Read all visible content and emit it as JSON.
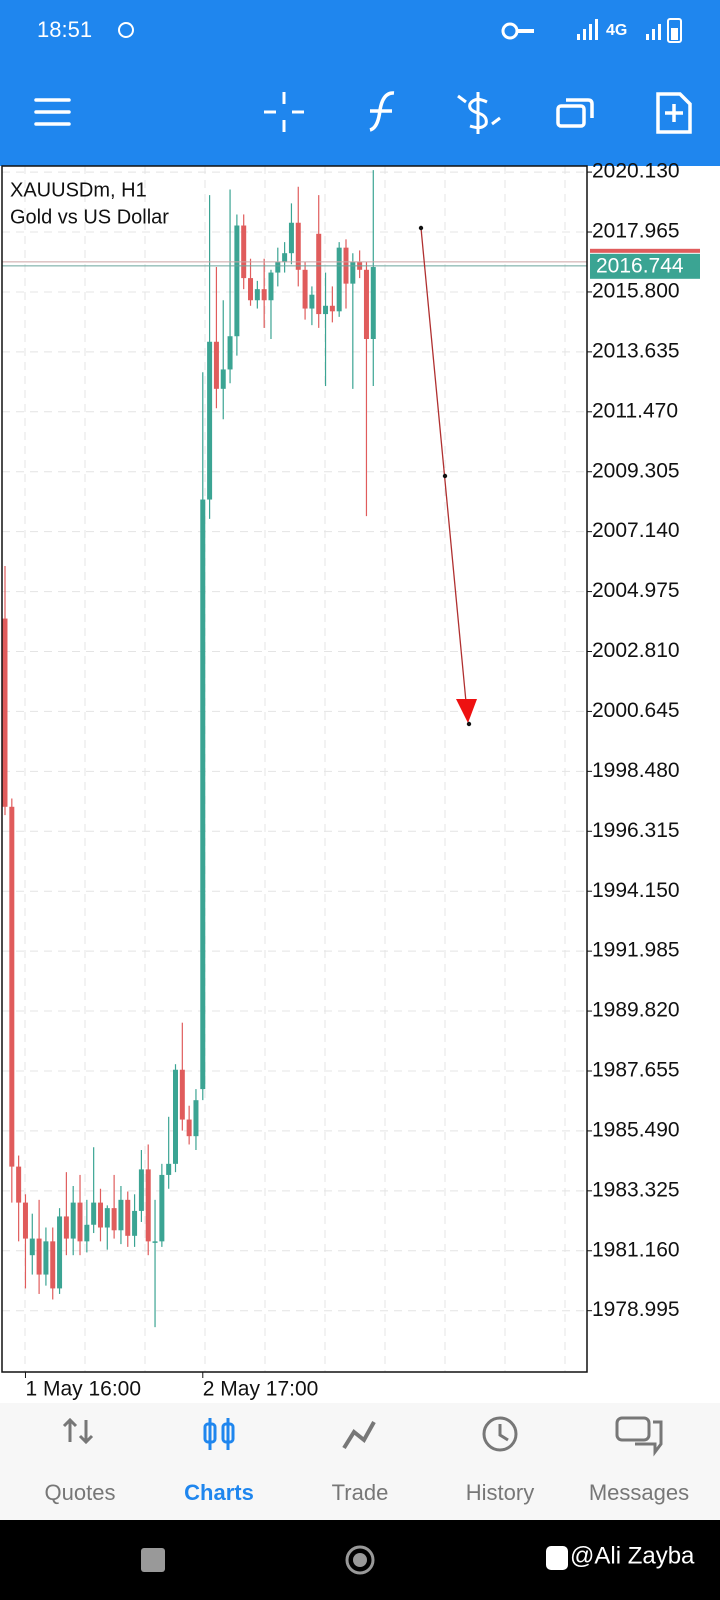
{
  "status_bar": {
    "time": "18:51",
    "network": "4G"
  },
  "chart_data": {
    "type": "candlestick",
    "title": "XAUUSDm, H1",
    "subtitle": "Gold vs US Dollar",
    "categories": [
      null,
      null,
      null,
      "1 May 16:00",
      null,
      null,
      null,
      null,
      null,
      null,
      null,
      null,
      null,
      null,
      null,
      null,
      null,
      null,
      null,
      null,
      null,
      null,
      null,
      null,
      null,
      null,
      null,
      null,
      null,
      "2 May 17:00",
      null,
      null,
      null,
      null,
      null,
      null,
      null,
      null,
      null,
      null,
      null,
      null,
      null,
      null,
      null,
      null,
      null,
      null,
      null,
      null,
      null,
      null,
      null,
      null,
      null
    ],
    "open": [
      2004.0,
      1997.2,
      1984.2,
      1982.9,
      1981.0,
      1981.6,
      1980.3,
      1981.5,
      1979.8,
      1982.4,
      1981.6,
      1982.9,
      1981.5,
      1982.1,
      1982.9,
      1982.0,
      1982.7,
      1981.9,
      1983.0,
      1981.7,
      1982.6,
      1984.1,
      1981.5,
      1981.5,
      1983.9,
      1984.3,
      1987.7,
      1985.9,
      1985.3,
      1987.0,
      2008.3,
      2014.0,
      2012.3,
      2013.0,
      2014.2,
      2018.2,
      2016.3,
      2015.5,
      2015.9,
      2015.5,
      2016.5,
      2016.9,
      2017.2,
      2018.3,
      2016.6,
      2015.2,
      2017.9,
      2015.0,
      2015.3,
      2015.1,
      2017.4,
      2016.1,
      2016.9,
      2016.6,
      2014.1
    ],
    "high": [
      2005.9,
      1997.5,
      1984.6,
      1983.2,
      1982.5,
      1983.0,
      1982.0,
      1982.0,
      1982.7,
      1984.0,
      1983.5,
      1983.9,
      1983.0,
      1984.9,
      1983.4,
      1982.8,
      1983.9,
      1983.5,
      1983.3,
      1983.2,
      1984.8,
      1985.0,
      1983.0,
      1984.3,
      1986.0,
      1987.9,
      1989.4,
      1986.4,
      1987.0,
      2012.9,
      2019.3,
      2016.7,
      2015.5,
      2019.5,
      2018.6,
      2018.6,
      2017.0,
      2016.2,
      2017.0,
      2016.6,
      2017.4,
      2017.6,
      2019.0,
      2019.6,
      2016.9,
      2016.0,
      2019.3,
      2016.5,
      2016.0,
      2017.6,
      2017.7,
      2017.2,
      2017.3,
      2016.9,
      2020.2
    ],
    "low": [
      1996.9,
      1982.9,
      1981.5,
      1979.8,
      1980.3,
      1979.6,
      1979.9,
      1979.4,
      1979.6,
      1981.0,
      1981.0,
      1981.0,
      1981.1,
      1981.8,
      1981.5,
      1981.2,
      1981.6,
      1981.4,
      1981.3,
      1981.3,
      1982.2,
      1981.0,
      1978.4,
      1981.3,
      1983.4,
      1984.0,
      1985.5,
      1985.0,
      1984.8,
      1986.6,
      2007.6,
      2011.6,
      2011.2,
      2012.5,
      2013.5,
      2015.9,
      2015.3,
      2015.2,
      2014.5,
      2014.1,
      2016.0,
      2016.5,
      2016.8,
      2016.0,
      2014.8,
      2014.6,
      2014.5,
      2012.4,
      2014.7,
      2014.9,
      2015.2,
      2012.3,
      2016.3,
      2007.7,
      2012.4
    ],
    "close": [
      1997.2,
      1984.2,
      1982.9,
      1981.6,
      1981.6,
      1980.3,
      1981.5,
      1979.8,
      1982.4,
      1981.6,
      1982.9,
      1981.5,
      1982.1,
      1982.9,
      1982.0,
      1982.7,
      1981.9,
      1983.0,
      1981.7,
      1982.6,
      1984.1,
      1981.5,
      1981.5,
      1983.9,
      1984.3,
      1987.7,
      1985.9,
      1985.3,
      1986.6,
      2008.3,
      2014.0,
      2012.3,
      2013.0,
      2014.2,
      2018.2,
      2016.3,
      2015.5,
      2015.9,
      2015.5,
      2016.5,
      2016.9,
      2017.2,
      2018.3,
      2016.6,
      2015.2,
      2015.7,
      2015.0,
      2015.3,
      2015.1,
      2017.4,
      2016.1,
      2016.9,
      2016.6,
      2014.1,
      2016.7
    ],
    "up_color": "#3ba493",
    "down_color": "#e05c5c",
    "ylim": [
      1976.78,
      2020.35
    ],
    "yticks": [
      {
        "value": 2020.13,
        "label": "2020.130"
      },
      {
        "value": 2017.965,
        "label": "2017.965"
      },
      {
        "value": 2015.8,
        "label": "2015.800"
      },
      {
        "value": 2013.635,
        "label": "2013.635"
      },
      {
        "value": 2011.47,
        "label": "2011.470"
      },
      {
        "value": 2009.305,
        "label": "2009.305"
      },
      {
        "value": 2007.14,
        "label": "2007.140"
      },
      {
        "value": 2004.975,
        "label": "2004.975"
      },
      {
        "value": 2002.81,
        "label": "2002.810"
      },
      {
        "value": 2000.645,
        "label": "2000.645"
      },
      {
        "value": 1998.48,
        "label": "1998.480"
      },
      {
        "value": 1996.315,
        "label": "1996.315"
      },
      {
        "value": 1994.15,
        "label": "1994.150"
      },
      {
        "value": 1991.985,
        "label": "1991.985"
      },
      {
        "value": 1989.82,
        "label": "1989.820"
      },
      {
        "value": 1987.655,
        "label": "1987.655"
      },
      {
        "value": 1985.49,
        "label": "1985.490"
      },
      {
        "value": 1983.325,
        "label": "1983.325"
      },
      {
        "value": 1981.16,
        "label": "1981.160"
      },
      {
        "value": 1978.995,
        "label": "1978.995"
      }
    ],
    "current_price": 2016.744,
    "grid": true
  },
  "nav": {
    "items": [
      "Quotes",
      "Charts",
      "Trade",
      "History",
      "Messages"
    ],
    "active": 1
  },
  "watermark": "@Ali Zayba"
}
